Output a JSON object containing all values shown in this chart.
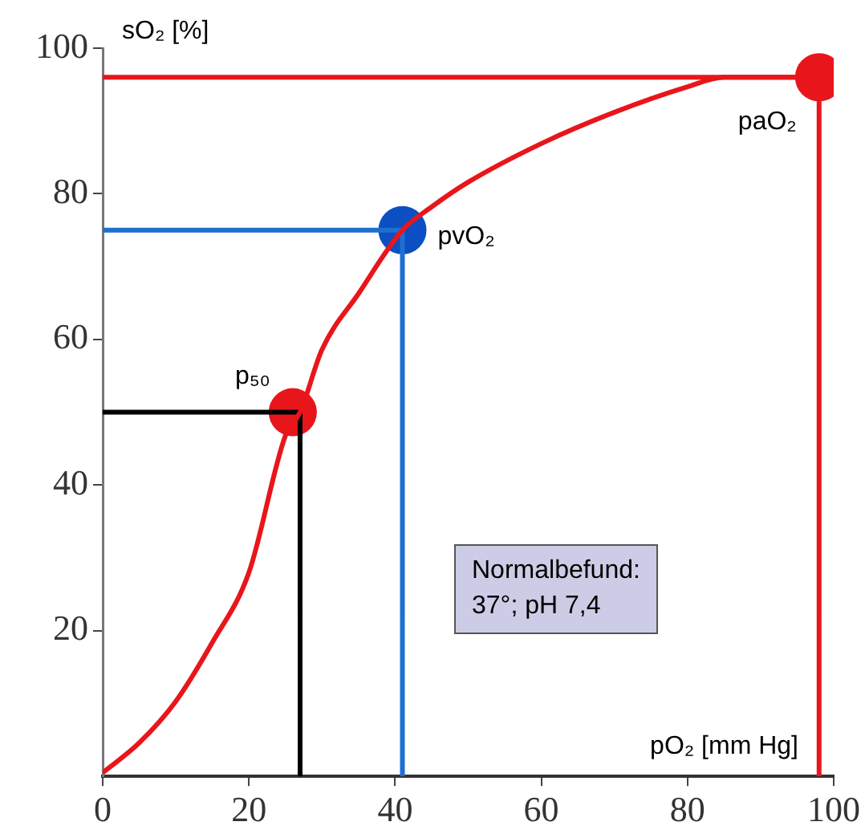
{
  "chart_data": {
    "type": "line",
    "xlabel": "pO₂ [mm Hg]",
    "ylabel": "sO₂ [%]",
    "xlim": [
      0,
      100
    ],
    "ylim": [
      0,
      100
    ],
    "xticks": [
      0,
      20,
      40,
      60,
      80,
      100
    ],
    "yticks": [
      20,
      40,
      60,
      80,
      100
    ],
    "grid": false,
    "legend": false,
    "marker": "none",
    "line_style": "solid",
    "annotations": [
      "Normalbefund:\n37°; pH 7,4"
    ],
    "series": [
      {
        "color": "#e8161b",
        "x": [
          0,
          5,
          10,
          15,
          20,
          25,
          27,
          30,
          35,
          41,
          45,
          50,
          60,
          70,
          80,
          85,
          98
        ],
        "values": [
          0.5,
          4.6,
          10.3,
          18.4,
          28,
          46.8,
          50,
          58.6,
          66.3,
          75,
          78.2,
          81.6,
          86.9,
          91.2,
          94.7,
          96,
          96
        ]
      },
      {
        "color": "#e8161b",
        "x": [
          0,
          98,
          98
        ],
        "values": [
          96,
          96,
          0
        ]
      },
      {
        "color": "#1f6fd0",
        "x": [
          0,
          41,
          41
        ],
        "values": [
          75,
          75,
          0
        ]
      },
      {
        "color": "#000000",
        "x": [
          0,
          27,
          27
        ],
        "values": [
          50,
          50,
          0
        ]
      },
      {
        "type": "scatter",
        "name": "p₅₀",
        "color": "#e8161b",
        "marker": "circle",
        "x": [
          26
        ],
        "values": [
          50
        ]
      },
      {
        "type": "scatter",
        "name": "pvO₂",
        "color": "#0b4fc2",
        "marker": "circle",
        "x": [
          41
        ],
        "values": [
          75
        ]
      },
      {
        "type": "scatter",
        "name": "paO₂",
        "color": "#e8161b",
        "marker": "circle",
        "x": [
          98
        ],
        "values": [
          96
        ]
      }
    ]
  }
}
